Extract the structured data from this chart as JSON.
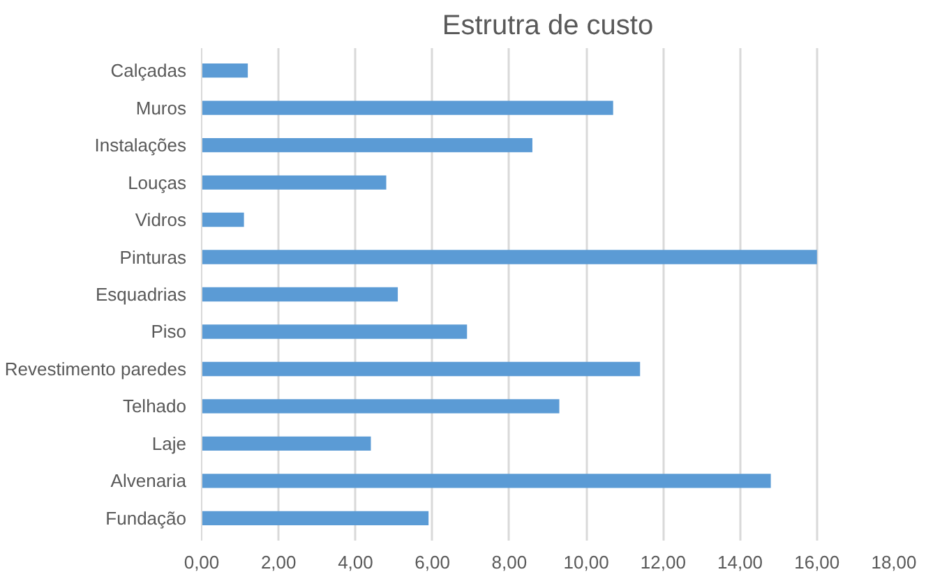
{
  "chart_data": {
    "type": "bar",
    "orientation": "horizontal",
    "title": "Estrutra de custo",
    "categories": [
      "Calçadas",
      "Muros",
      "Instalações",
      "Louças",
      "Vidros",
      "Pinturas",
      "Esquadrias",
      "Piso",
      "Revestimento paredes",
      "Telhado",
      "Laje",
      "Alvenaria",
      "Fundação"
    ],
    "values": [
      1.2,
      10.7,
      8.6,
      4.8,
      1.1,
      16.0,
      5.1,
      6.9,
      11.4,
      9.3,
      4.4,
      14.8,
      5.9
    ],
    "color": "#5b9bd5",
    "xlim": [
      0,
      18
    ],
    "xticks": [
      {
        "value": 0,
        "label": "0,00"
      },
      {
        "value": 2,
        "label": "2,00"
      },
      {
        "value": 4,
        "label": "4,00"
      },
      {
        "value": 6,
        "label": "6,00"
      },
      {
        "value": 8,
        "label": "8,00"
      },
      {
        "value": 10,
        "label": "10,00"
      },
      {
        "value": 12,
        "label": "12,00"
      },
      {
        "value": 14,
        "label": "14,00"
      },
      {
        "value": 16,
        "label": "16,00"
      },
      {
        "value": 18,
        "label": "18,00"
      }
    ],
    "grid": "x"
  }
}
